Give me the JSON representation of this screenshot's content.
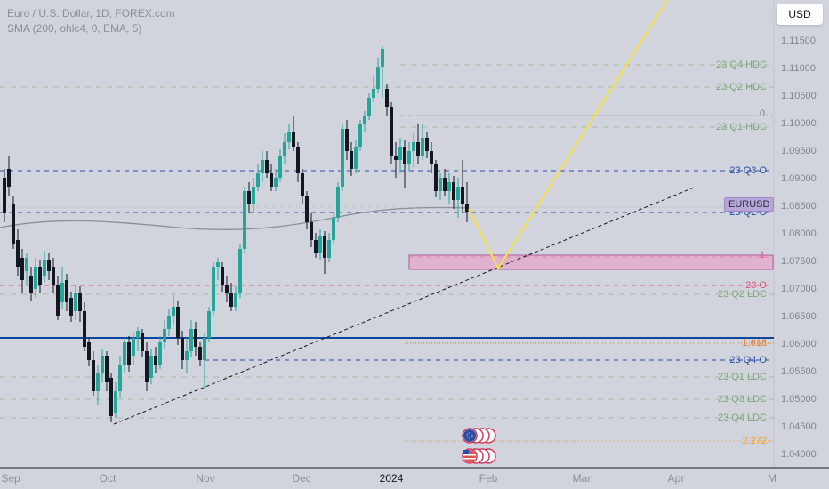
{
  "legend": {
    "title": "Euro / U.S. Dollar, 1D, FOREX.com",
    "indicator": "SMA (200, ohlc4, 0, EMA, 5)"
  },
  "currency_button": "USD",
  "symbol_badge": "EURUSD",
  "price_scale": [
    "1.11500",
    "1.11000",
    "1.10500",
    "1.10000",
    "1.09500",
    "1.09000",
    "1.08500",
    "1.08000",
    "1.07500",
    "1.07000",
    "1.06500",
    "1.06000",
    "1.05500",
    "1.05000",
    "1.04500",
    "1.04000"
  ],
  "time_axis": [
    "Sep",
    "Oct",
    "Nov",
    "Dec",
    "2024",
    "Feb",
    "Mar",
    "Apr",
    "M"
  ],
  "levels": [
    {
      "label": "23 Q4 HDC",
      "color": "#7ea57a"
    },
    {
      "label": "23 Q2 HDC",
      "color": "#7ea57a"
    },
    {
      "label": "0",
      "color": "#787b86"
    },
    {
      "label": "23 Q1 HDC",
      "color": "#7ea57a"
    },
    {
      "label": "23 Q3 O",
      "color": "#2a4ea8"
    },
    {
      "label": "23 Q2 O",
      "color": "#2a4ea8"
    },
    {
      "label": "1",
      "color": "#e0527a"
    },
    {
      "label": "23 O",
      "color": "#e0527a"
    },
    {
      "label": "23 Q2 LDC",
      "color": "#7ea57a"
    },
    {
      "label": "1.618",
      "color": "#e07a2a"
    },
    {
      "label": "23 Q4 O",
      "color": "#2a4ea8"
    },
    {
      "label": "23 Q1 LDC",
      "color": "#7ea57a"
    },
    {
      "label": "23 Q3 LDC",
      "color": "#7ea57a"
    },
    {
      "label": "23 Q4 LDC",
      "color": "#7ea57a"
    },
    {
      "label": "2.272",
      "color": "#f0a030"
    }
  ],
  "colors": {
    "up": "#26a69a",
    "down": "#131722",
    "background": "#d1d4dc",
    "projection": "#f5e04a",
    "zone": "#e8a0c8",
    "hline": "#0d47a1"
  },
  "icons": [
    "eu-flag-icon",
    "us-flag-icon"
  ]
}
